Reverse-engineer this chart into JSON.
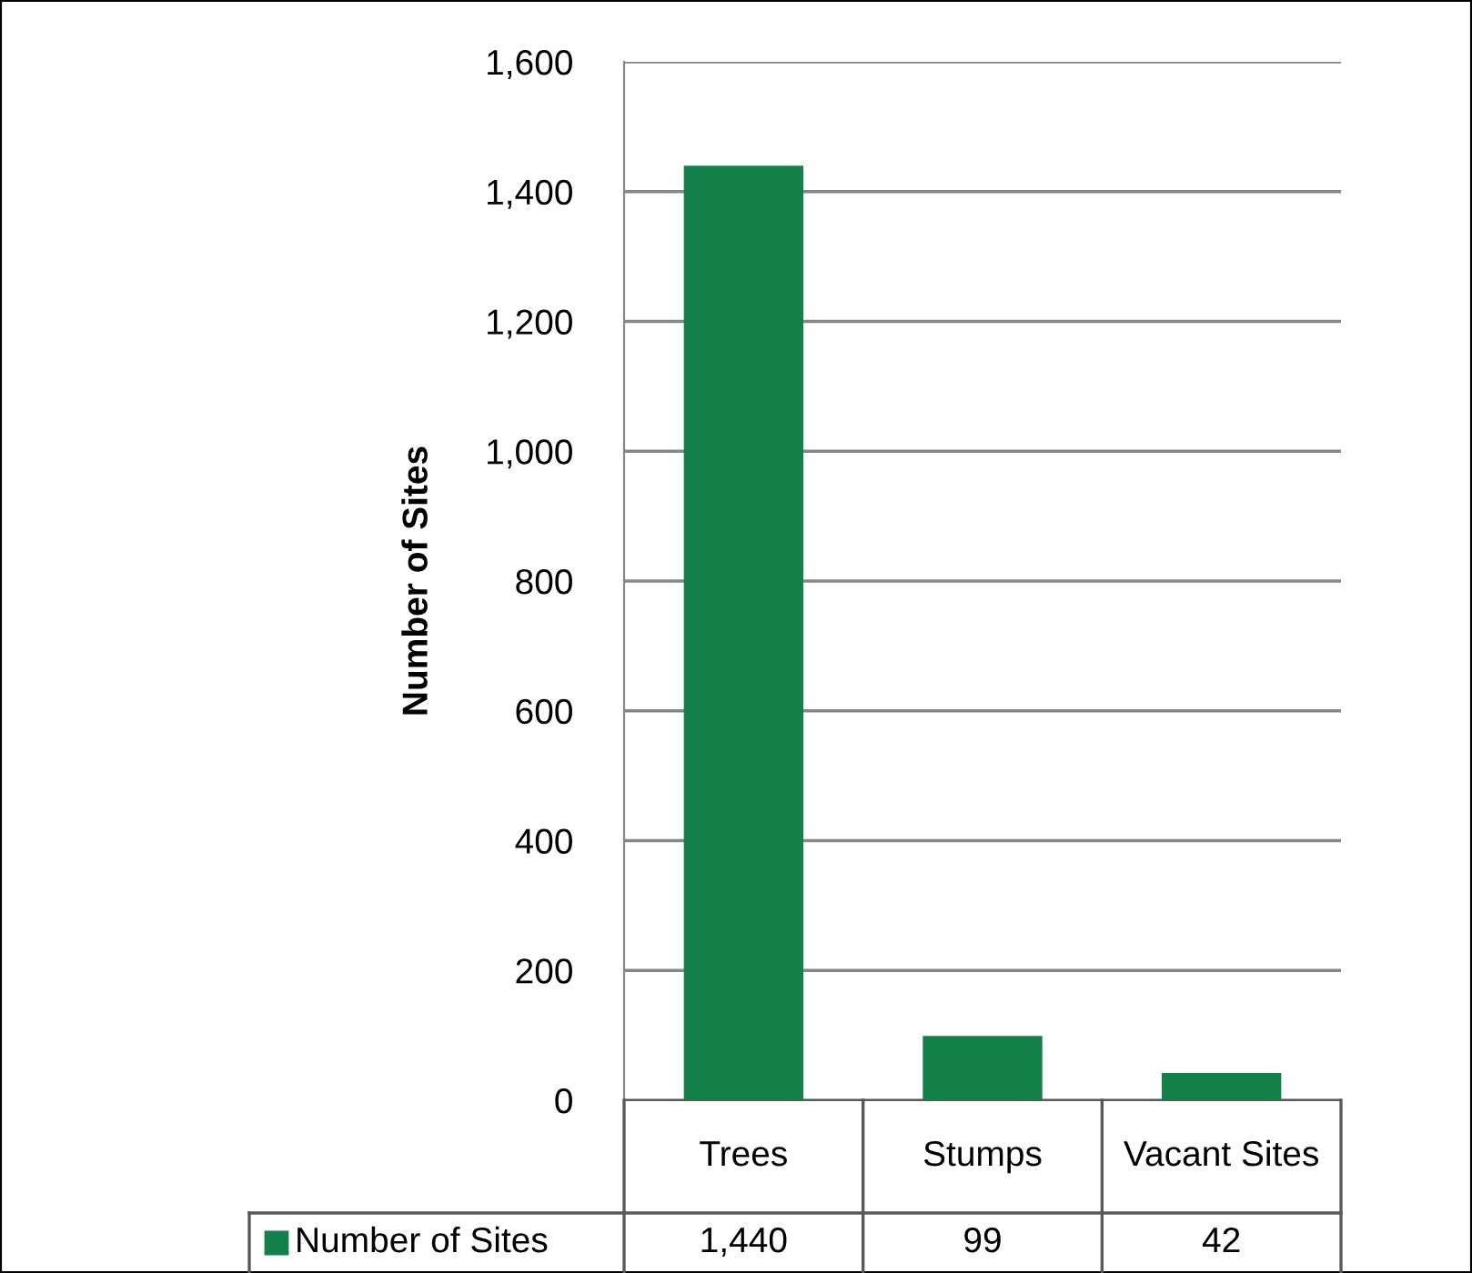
{
  "chart_data": {
    "type": "bar",
    "ylabel": "Number of Sites",
    "categories": [
      "Trees",
      "Stumps",
      "Vacant Sites"
    ],
    "series": [
      {
        "name": "Number of Sites",
        "color": "#13804a",
        "values": [
          1440,
          99,
          42
        ]
      }
    ],
    "ylim": [
      0,
      1600
    ],
    "yticks": [
      {
        "value": 0,
        "label": "0"
      },
      {
        "value": 200,
        "label": "200"
      },
      {
        "value": 400,
        "label": "400"
      },
      {
        "value": 600,
        "label": "600"
      },
      {
        "value": 800,
        "label": "800"
      },
      {
        "value": 1000,
        "label": "1,000"
      },
      {
        "value": 1200,
        "label": "1,200"
      },
      {
        "value": 1400,
        "label": "1,400"
      },
      {
        "value": 1600,
        "label": "1,600"
      }
    ],
    "value_labels": [
      "1,440",
      "99",
      "42"
    ],
    "grid": "y",
    "legend": "bottom"
  }
}
